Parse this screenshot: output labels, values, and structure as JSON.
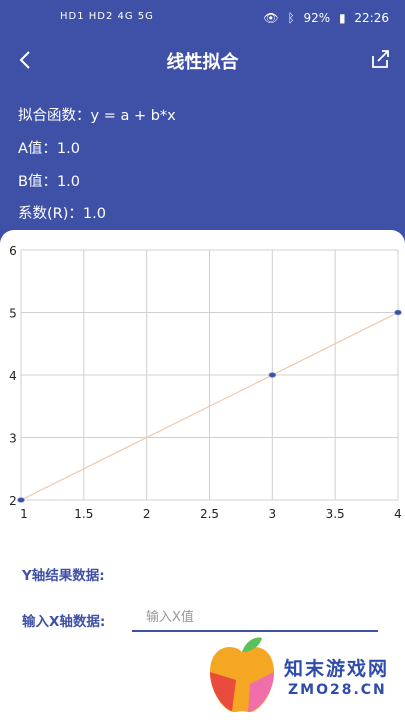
{
  "status_bar": {
    "left_indicators": "HD1 HD2 4G 5G",
    "battery": "92%",
    "time": "22:26"
  },
  "header": {
    "title": "线性拟合",
    "fit_function": "拟合函数：y = a + b*x",
    "a_value": "A值：1.0",
    "b_value": "B值：1.0",
    "r_value": "系数(R)：1.0"
  },
  "chart_data": {
    "type": "scatter",
    "x": [
      1,
      3,
      4
    ],
    "y": [
      2,
      4,
      5
    ],
    "fit_line": {
      "x": [
        1,
        4
      ],
      "y": [
        2,
        5
      ]
    },
    "xlim": [
      1,
      4
    ],
    "ylim": [
      2,
      6
    ],
    "x_ticks": [
      "1",
      "1.5",
      "2",
      "2.5",
      "3",
      "3.5",
      "4"
    ],
    "y_ticks": [
      "2",
      "3",
      "4",
      "5",
      "6"
    ],
    "grid": true,
    "colors": {
      "point": "#3f51a6",
      "line": "#f0c8b0",
      "grid": "#d0d0d0"
    }
  },
  "form": {
    "y_result_label": "Y轴结果数据:",
    "x_input_label": "输入X轴数据:",
    "x_input_placeholder": "输入X值"
  },
  "watermark": {
    "title": "知末游戏网",
    "subtitle": "ZMO28.CN"
  },
  "colors": {
    "primary": "#3f51a6"
  }
}
